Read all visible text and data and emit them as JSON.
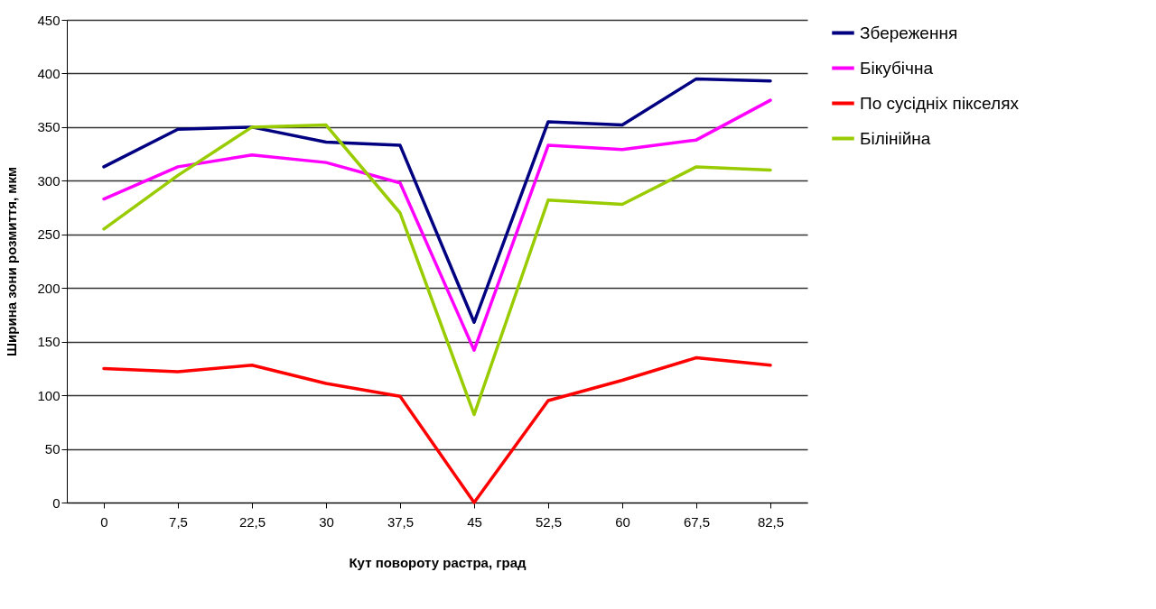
{
  "chart_data": {
    "type": "line",
    "xlabel": "Кут повороту растра, град",
    "ylabel": "Ширина зони розмиття, мкм",
    "categories": [
      "0",
      "7,5",
      "22,5",
      "30",
      "37,5",
      "45",
      "52,5",
      "60",
      "67,5",
      "82,5"
    ],
    "ylim": [
      0,
      450
    ],
    "yticks": [
      0,
      50,
      100,
      150,
      200,
      250,
      300,
      350,
      400,
      450
    ],
    "grid": "y",
    "legend": "right",
    "line_style": "solid",
    "marker": "none",
    "series": [
      {
        "name": "Збереження",
        "color": "#000080",
        "values": [
          313,
          348,
          350,
          336,
          333,
          168,
          355,
          352,
          395,
          393
        ]
      },
      {
        "name": "Бікубічна",
        "color": "#ff00ff",
        "values": [
          283,
          313,
          324,
          317,
          298,
          142,
          333,
          329,
          338,
          375
        ]
      },
      {
        "name": "По сусідніх пікселях",
        "color": "#ff0000",
        "values": [
          125,
          122,
          128,
          111,
          99,
          0,
          95,
          114,
          135,
          128
        ]
      },
      {
        "name": "Білінійна",
        "color": "#99cc00",
        "values": [
          255,
          305,
          350,
          352,
          270,
          82,
          282,
          278,
          313,
          310
        ]
      }
    ]
  }
}
